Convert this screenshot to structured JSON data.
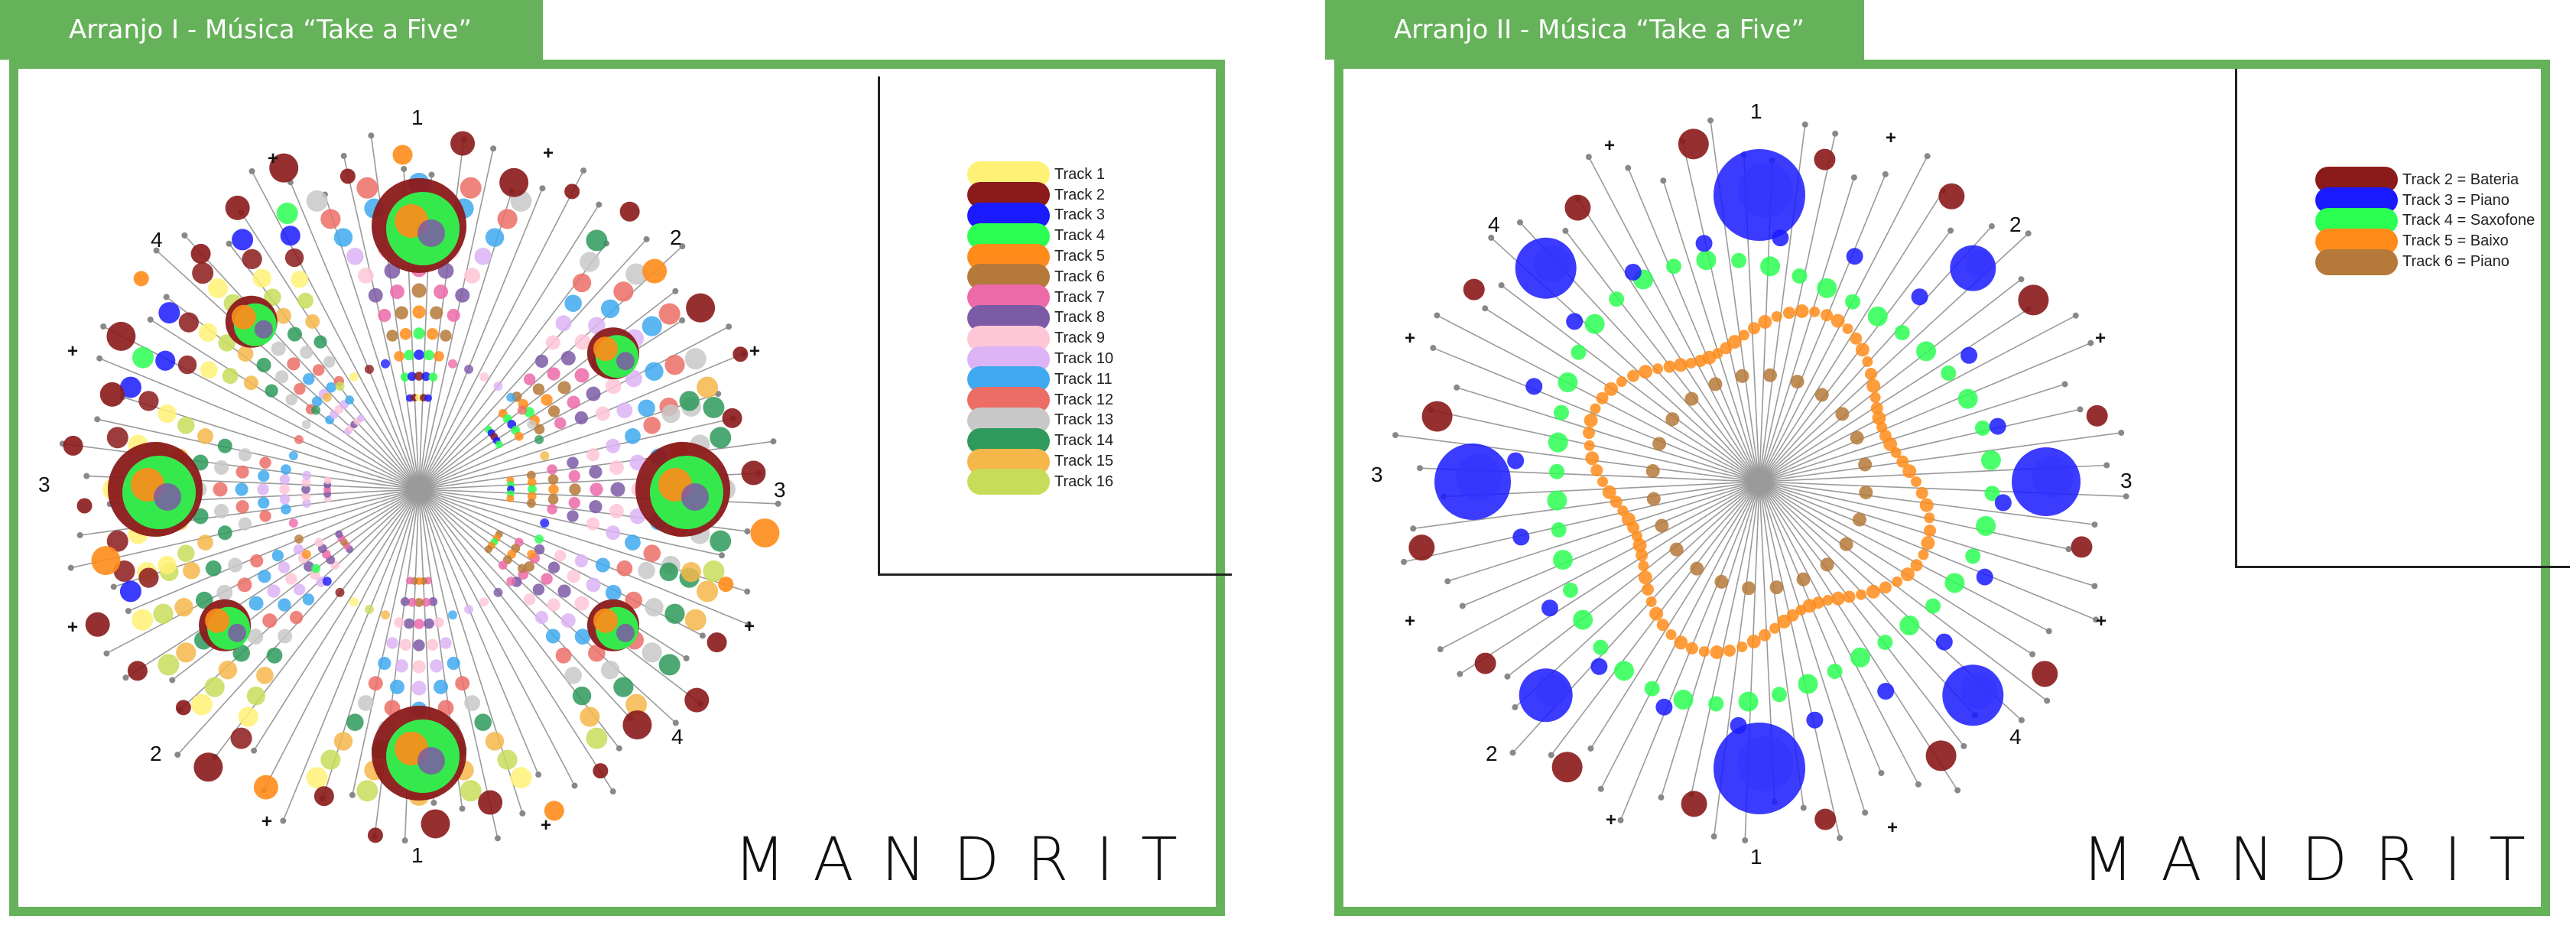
{
  "panels": [
    {
      "title": "Arranjo I - Música “Take a Five”",
      "brand": "MANDRIT",
      "legend": [
        {
          "label": "Track 1",
          "color": "#fff176"
        },
        {
          "label": "Track 2",
          "color": "#8b1a1a"
        },
        {
          "label": "Track 3",
          "color": "#1a1aff"
        },
        {
          "label": "Track 4",
          "color": "#2bff52"
        },
        {
          "label": "Track 5",
          "color": "#ff8c1a"
        },
        {
          "label": "Track 6",
          "color": "#b5793a"
        },
        {
          "label": "Track 7",
          "color": "#ec6aa8"
        },
        {
          "label": "Track 8",
          "color": "#7b5aa6"
        },
        {
          "label": "Track 9",
          "color": "#ffc6d6"
        },
        {
          "label": "Track 10",
          "color": "#dcb4f5"
        },
        {
          "label": "Track 11",
          "color": "#3ea9f0"
        },
        {
          "label": "Track 12",
          "color": "#ec6d66"
        },
        {
          "label": "Track 13",
          "color": "#c8c8c8"
        },
        {
          "label": "Track 14",
          "color": "#2e9a5b"
        },
        {
          "label": "Track 15",
          "color": "#f5b74a"
        },
        {
          "label": "Track 16",
          "color": "#c7dd5a"
        }
      ]
    },
    {
      "title": "Arranjo II - Música “Take a Five”",
      "brand": "MANDRIT",
      "legend": [
        {
          "label": "Track 2 = Bateria",
          "color": "#8b1a1a"
        },
        {
          "label": "Track 3 = Piano",
          "color": "#1a1aff"
        },
        {
          "label": "Track 4 = Saxofone",
          "color": "#2bff52"
        },
        {
          "label": "Track 5 = Baixo",
          "color": "#ff8c1a"
        },
        {
          "label": "Track 6 = Piano",
          "color": "#b5793a"
        }
      ]
    }
  ],
  "axis_labels": {
    "one": "1",
    "two": "2",
    "three": "3",
    "four": "4",
    "plus": "+"
  }
}
